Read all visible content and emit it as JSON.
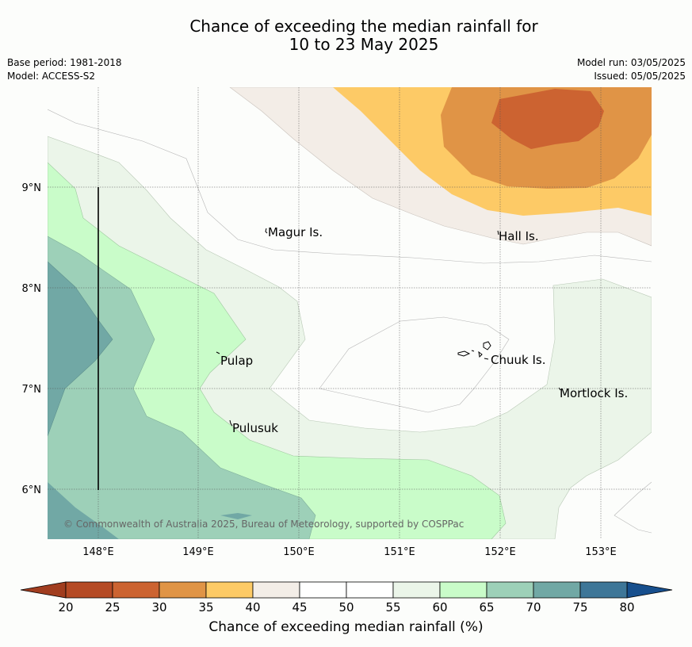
{
  "title": {
    "line1": "Chance of exceeding the median rainfall for",
    "line2": "10 to 23 May 2025"
  },
  "meta": {
    "base_period": "Base period: 1981-2018",
    "model": "Model: ACCESS-S2",
    "model_run": "Model run: 03/05/2025",
    "issued": "Issued: 05/05/2025"
  },
  "map": {
    "lon_ticks": [
      "148°E",
      "149°E",
      "150°E",
      "151°E",
      "152°E",
      "153°E"
    ],
    "lat_ticks": [
      "9°N",
      "8°N",
      "7°N",
      "6°N"
    ],
    "places": [
      "Magur Is.",
      "Hall Is.",
      "Pulap",
      "Chuuk Is.",
      "Mortlock Is.",
      "Pulusuk"
    ],
    "copyright": "© Commonwealth of Australia 2025, Bureau of Meteorology, supported by COSPPac"
  },
  "colorbar": {
    "ticks": [
      "20",
      "25",
      "30",
      "35",
      "40",
      "45",
      "50",
      "55",
      "60",
      "65",
      "70",
      "75",
      "80"
    ],
    "colors": [
      "#b54a25",
      "#cc6331",
      "#e09446",
      "#fdca66",
      "#f3ede7",
      "#ffffff",
      "#ffffff",
      "#ebf5e9",
      "#c9fcc9",
      "#9dd0b8",
      "#71a8a5",
      "#3e7698"
    ],
    "low_color": "#a13d1f",
    "high_color": "#174f8d",
    "label": "Chance of exceeding median rainfall (%)"
  }
}
